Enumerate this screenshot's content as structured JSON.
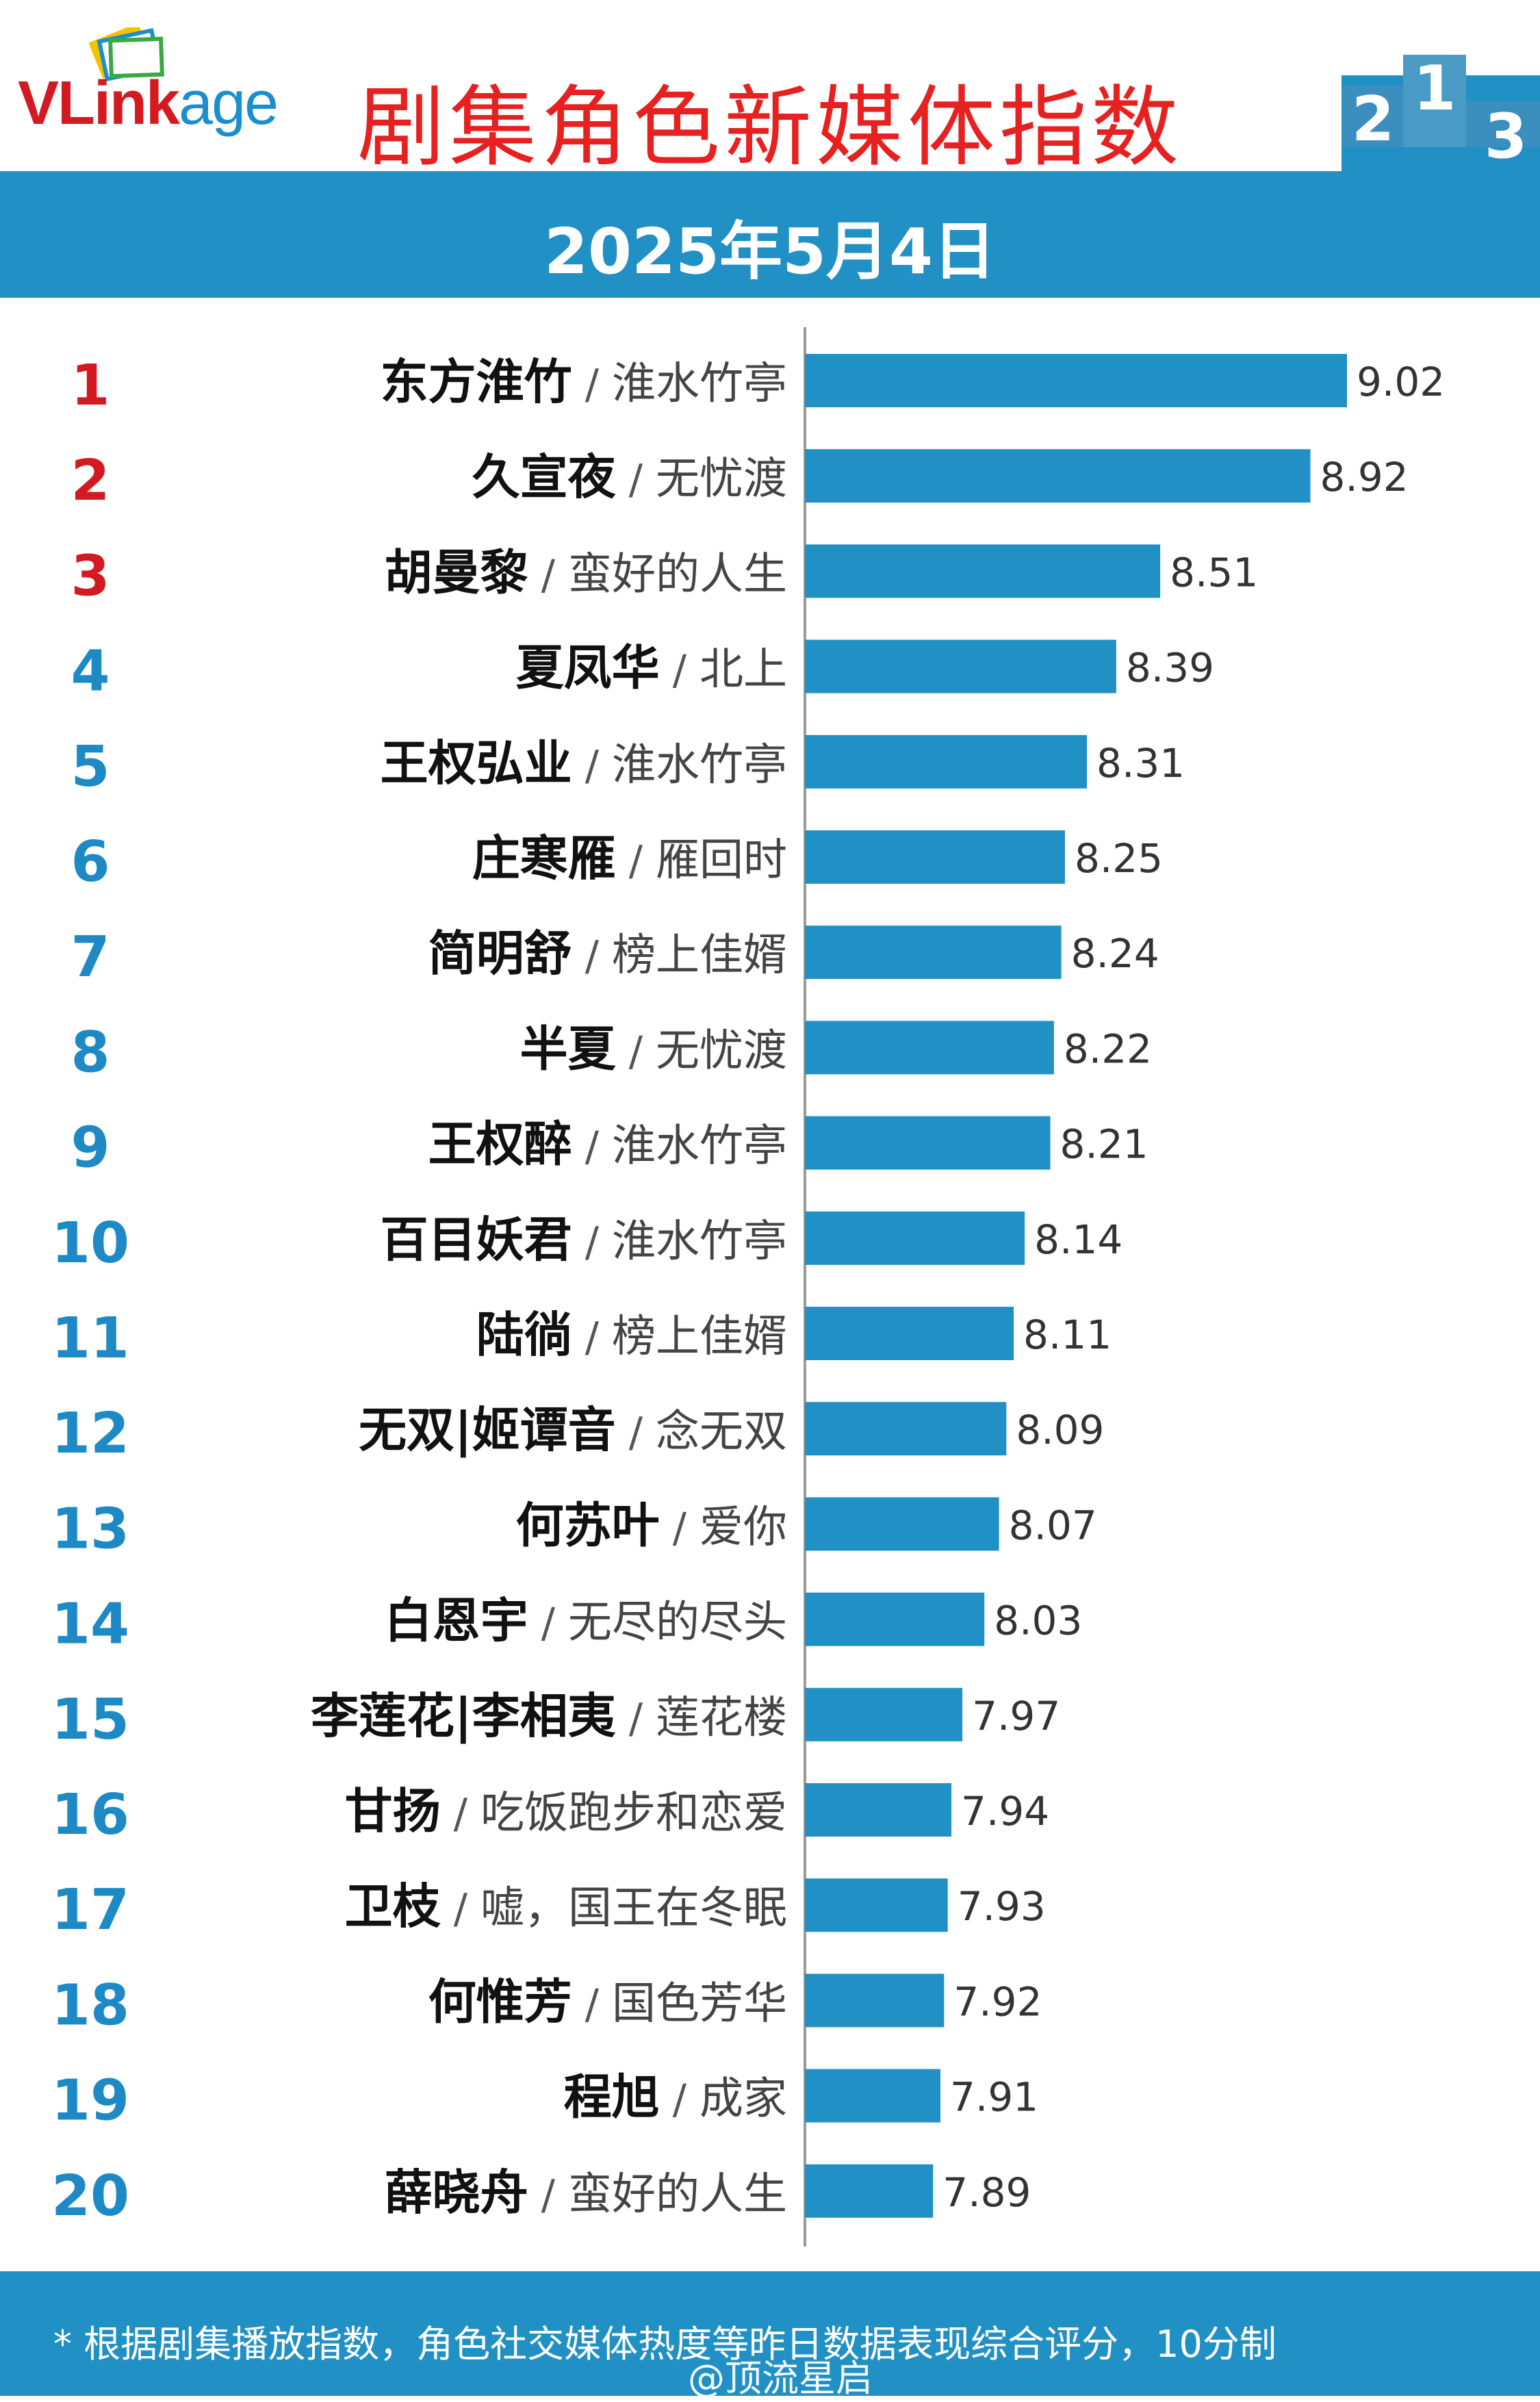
{
  "brand": {
    "logo_v": "V",
    "logo_link": "Link",
    "logo_age": "age"
  },
  "header": {
    "title": "剧集角色新媒体指数",
    "date": "2025年5月4日",
    "podium_numbers": [
      "2",
      "1",
      "3"
    ]
  },
  "colors": {
    "accent_blue": "#2190c4",
    "bar": "#2190c4",
    "title_red": "#e6211f",
    "top_rank_red": "#d41a21",
    "rank_blue": "#1d8ac6",
    "text_dark": "#111111",
    "text_gray": "#444444"
  },
  "chart_data": {
    "type": "bar",
    "orientation": "horizontal",
    "value_labels": true,
    "grid": false,
    "legend": "none",
    "rows": [
      {
        "rank": "1",
        "name": "东方淮竹",
        "show": "淮水竹亭",
        "value": 9.02
      },
      {
        "rank": "2",
        "name": "久宣夜",
        "show": "无忧渡",
        "value": 8.92
      },
      {
        "rank": "3",
        "name": "胡曼黎",
        "show": "蛮好的人生",
        "value": 8.51
      },
      {
        "rank": "4",
        "name": "夏凤华",
        "show": "北上",
        "value": 8.39
      },
      {
        "rank": "5",
        "name": "王权弘业",
        "show": "淮水竹亭",
        "value": 8.31
      },
      {
        "rank": "6",
        "name": "庄寒雁",
        "show": "雁回时",
        "value": 8.25
      },
      {
        "rank": "7",
        "name": "简明舒",
        "show": "榜上佳婿",
        "value": 8.24
      },
      {
        "rank": "8",
        "name": "半夏",
        "show": "无忧渡",
        "value": 8.22
      },
      {
        "rank": "9",
        "name": "王权醉",
        "show": "淮水竹亭",
        "value": 8.21
      },
      {
        "rank": "10",
        "name": "百目妖君",
        "show": "淮水竹亭",
        "value": 8.14
      },
      {
        "rank": "11",
        "name": "陆徜",
        "show": "榜上佳婿",
        "value": 8.11
      },
      {
        "rank": "12",
        "name": "无双|姬谭音",
        "show": "念无双",
        "value": 8.09
      },
      {
        "rank": "13",
        "name": "何苏叶",
        "show": "爱你",
        "value": 8.07
      },
      {
        "rank": "14",
        "name": "白恩宇",
        "show": "无尽的尽头",
        "value": 8.03
      },
      {
        "rank": "15",
        "name": "李莲花|李相夷",
        "show": "莲花楼",
        "value": 7.97
      },
      {
        "rank": "16",
        "name": "甘扬",
        "show": "吃饭跑步和恋爱",
        "value": 7.94
      },
      {
        "rank": "17",
        "name": "卫枝",
        "show": "嘘，国王在冬眠",
        "value": 7.93
      },
      {
        "rank": "18",
        "name": "何惟芳",
        "show": "国色芳华",
        "value": 7.92
      },
      {
        "rank": "19",
        "name": "程旭",
        "show": "成家",
        "value": 7.91
      },
      {
        "rank": "20",
        "name": "薛晓舟",
        "show": "蛮好的人生",
        "value": 7.89
      }
    ],
    "separator": "/",
    "value_format": "2 decimals"
  },
  "footer": {
    "note": "* 根据剧集播放指数，角色社交媒体热度等昨日数据表现综合评分，10分制",
    "watermark": "@顶流星启"
  }
}
